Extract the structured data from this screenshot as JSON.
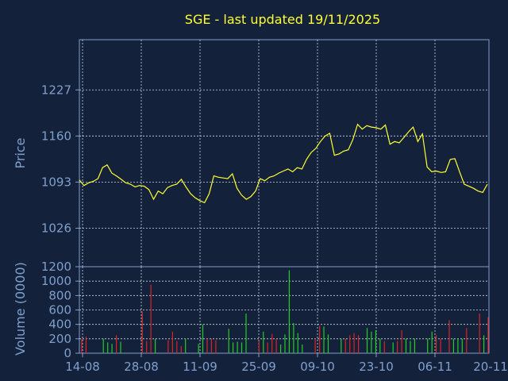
{
  "colors": {
    "background": "#13223a",
    "frame": "#7f9fcf",
    "grid": "#cfd8e6",
    "axis_text": "#7f9fcf",
    "title": "#ffff33",
    "price_line": "#ffff33",
    "volume_up": "#22cc22",
    "volume_down": "#dd2222"
  },
  "chart_data": [
    {
      "type": "line",
      "title": "SGE - last updated 19/11/2025",
      "ylabel": "Price",
      "ylim": [
        970,
        1300
      ],
      "yticks": [
        "1227",
        "1160",
        "1093",
        "1026"
      ],
      "ytick_values": [
        1227,
        1160,
        1093,
        1026
      ],
      "grid": true,
      "series": [
        {
          "values": [
            1096,
            1088,
            1092,
            1094,
            1098,
            1114,
            1118,
            1106,
            1102,
            1097,
            1092,
            1090,
            1086,
            1088,
            1087,
            1082,
            1068,
            1080,
            1076,
            1085,
            1088,
            1090,
            1097,
            1086,
            1076,
            1070,
            1066,
            1063,
            1076,
            1102,
            1100,
            1099,
            1098,
            1105,
            1084,
            1074,
            1068,
            1072,
            1080,
            1098,
            1095,
            1100,
            1102,
            1106,
            1109,
            1112,
            1108,
            1114,
            1112,
            1126,
            1136,
            1142,
            1152,
            1160,
            1164,
            1132,
            1134,
            1138,
            1140,
            1155,
            1177,
            1170,
            1175,
            1173,
            1172,
            1170,
            1176,
            1148,
            1152,
            1150,
            1158,
            1166,
            1173,
            1152,
            1163,
            1115,
            1108,
            1109,
            1107,
            1108,
            1126,
            1127,
            1108,
            1090,
            1087,
            1084,
            1080,
            1078,
            1090
          ]
        }
      ]
    },
    {
      "type": "bar",
      "ylabel": "Volume (0000)",
      "ylim": [
        0,
        1200
      ],
      "yticks": [
        "1200",
        "1000",
        "800",
        "600",
        "400",
        "200",
        "0"
      ],
      "ytick_values": [
        1200,
        1000,
        800,
        600,
        400,
        200,
        0
      ],
      "xticks": [
        "14-08",
        "28-08",
        "11-09",
        "25-09",
        "09-10",
        "23-10",
        "06-11",
        "20-11"
      ],
      "grid": true,
      "series": [
        {
          "values": [
            200,
            230,
            0,
            0,
            0,
            200,
            150,
            130,
            250,
            160,
            0,
            0,
            0,
            0,
            580,
            170,
            950,
            200,
            0,
            0,
            180,
            300,
            170,
            100,
            200,
            0,
            0,
            130,
            400,
            200,
            200,
            180,
            0,
            0,
            340,
            150,
            160,
            150,
            550,
            0,
            0,
            170,
            300,
            150,
            270,
            200,
            120,
            260,
            1150,
            420,
            280,
            120,
            0,
            0,
            200,
            380,
            370,
            260,
            0,
            0,
            200,
            200,
            250,
            280,
            250,
            0,
            350,
            300,
            320,
            200,
            170,
            0,
            150,
            170,
            320,
            200,
            170,
            200,
            0,
            0,
            200,
            300,
            250,
            200,
            0,
            460,
            200,
            200,
            200,
            350,
            0,
            0,
            550,
            250,
            500
          ],
          "direction": [
            "down",
            "down",
            "",
            "",
            "",
            "up",
            "up",
            "up",
            "down",
            "up",
            "",
            "",
            "",
            "",
            "down",
            "down",
            "down",
            "up",
            "",
            "",
            "down",
            "down",
            "down",
            "down",
            "up",
            "",
            "",
            "up",
            "up",
            "down",
            "down",
            "down",
            "",
            "",
            "up",
            "up",
            "up",
            "up",
            "up",
            "",
            "",
            "down",
            "up",
            "down",
            "down",
            "down",
            "up",
            "up",
            "up",
            "up",
            "up",
            "up",
            "",
            "",
            "down",
            "down",
            "up",
            "up",
            "",
            "",
            "up",
            "down",
            "down",
            "down",
            "down",
            "",
            "up",
            "up",
            "up",
            "up",
            "down",
            "",
            "up",
            "down",
            "down",
            "up",
            "up",
            "up",
            "",
            "",
            "up",
            "up",
            "down",
            "down",
            "",
            "down",
            "up",
            "up",
            "up",
            "down",
            "",
            "",
            "down",
            "up",
            "down"
          ]
        }
      ]
    }
  ]
}
